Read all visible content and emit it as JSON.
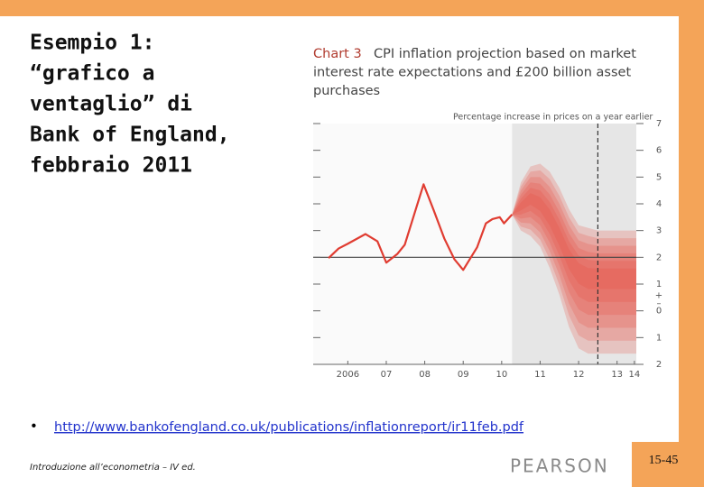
{
  "slide": {
    "title_lines": [
      "Esempio 1:",
      "“grafico a",
      "ventaglio” di",
      "Bank of England,",
      "febbraio 2011"
    ],
    "bullet": "•",
    "link": "http://www.bankofengland.co.uk/publications/inflationreport/ir11feb.pdf",
    "footer": "Introduzione all’econometria – IV ed.",
    "logo": "PEARSON",
    "page_number": "15-45"
  },
  "chart_data": {
    "type": "fan",
    "title": "Chart 3",
    "subtitle_lines": [
      "CPI inflation projection based on market",
      "interest rate expectations and £200 billion asset",
      "purchases"
    ],
    "y_axis_label": "Percentage increase in prices on a year earlier",
    "annotations": [
      "+",
      "–"
    ],
    "xlim": [
      2005.6,
      2014.0
    ],
    "ylim": [
      -2,
      7
    ],
    "xticks": [
      {
        "value": 2006.5,
        "label": "2006"
      },
      {
        "value": 2007.5,
        "label": "07"
      },
      {
        "value": 2008.5,
        "label": "08"
      },
      {
        "value": 2009.5,
        "label": "09"
      },
      {
        "value": 2010.5,
        "label": "10"
      },
      {
        "value": 2011.5,
        "label": "11"
      },
      {
        "value": 2012.5,
        "label": "12"
      },
      {
        "value": 2013.5,
        "label": "13"
      },
      {
        "value": 2013.95,
        "label": "14"
      }
    ],
    "yticks": [
      {
        "value": 7,
        "label": "7"
      },
      {
        "value": 6,
        "label": "6"
      },
      {
        "value": 5,
        "label": "5"
      },
      {
        "value": 4,
        "label": "4"
      },
      {
        "value": 3,
        "label": "3"
      },
      {
        "value": 2,
        "label": "2"
      },
      {
        "value": 1,
        "label": "1"
      },
      {
        "value": 0,
        "label": "0"
      },
      {
        "value": -1,
        "label": "1"
      },
      {
        "value": -2,
        "label": "2"
      }
    ],
    "target": 2,
    "projection_start": 2010.77,
    "dashed_line_x": 2013.0,
    "history": {
      "color": "#e03c31",
      "x": [
        2006.0,
        2006.26,
        2006.49,
        2006.96,
        2007.27,
        2007.5,
        2007.79,
        2007.98,
        2008.47,
        2008.73,
        2009.01,
        2009.27,
        2009.5,
        2009.86,
        2010.09,
        2010.26,
        2010.45,
        2010.56,
        2010.77
      ],
      "values": [
        1.97,
        2.33,
        2.5,
        2.87,
        2.6,
        1.8,
        2.13,
        2.47,
        4.73,
        3.77,
        2.7,
        1.93,
        1.53,
        2.37,
        3.27,
        3.43,
        3.5,
        3.27,
        3.6
      ]
    },
    "fan": {
      "color": "#e8473a",
      "x": [
        2010.77,
        2011.0,
        2011.25,
        2011.5,
        2011.75,
        2012.0,
        2012.25,
        2012.5,
        2012.75,
        2013.0,
        2013.5,
        2014.0
      ],
      "central": [
        3.6,
        3.9,
        4.2,
        4.0,
        3.5,
        2.8,
        2.0,
        1.5,
        1.3,
        1.3,
        1.3,
        1.3
      ],
      "upper": [
        3.6,
        4.8,
        5.4,
        5.5,
        5.2,
        4.6,
        3.8,
        3.2,
        3.1,
        3.0,
        3.0,
        3.0
      ],
      "lower": [
        3.6,
        3.0,
        2.8,
        2.4,
        1.6,
        0.6,
        -0.6,
        -1.4,
        -1.6,
        -1.6,
        -1.6,
        -1.6
      ]
    }
  }
}
